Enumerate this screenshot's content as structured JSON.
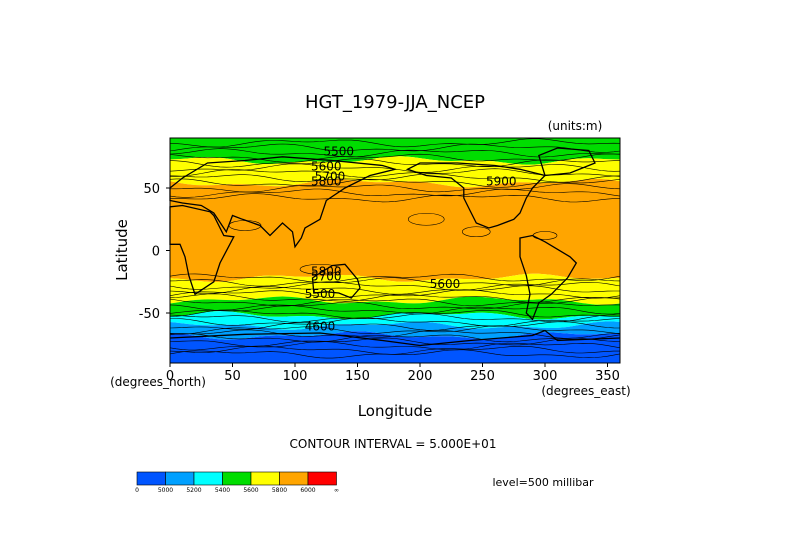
{
  "chart_data": {
    "type": "heatmap",
    "title": "HGT_1979-JJA_NCEP",
    "units_label": "(units:m)",
    "xlabel": "Longitude",
    "ylabel": "Latitude",
    "x_units_label": "(degrees_east)",
    "y_units_label": "(degrees_north)",
    "xlim": [
      0,
      360
    ],
    "ylim": [
      -90,
      90
    ],
    "x_ticks": [
      0,
      50,
      100,
      150,
      200,
      250,
      300,
      350
    ],
    "y_ticks": [
      50,
      0,
      -50
    ],
    "contour_interval_text": "CONTOUR INTERVAL = 5.000E+01",
    "level_text": "level=500 millibar",
    "contour_labels": [
      "5500",
      "5600",
      "5700",
      "5800",
      "5900",
      "5800",
      "5700",
      "5600",
      "5500",
      "4600"
    ],
    "legend": {
      "tick_labels": [
        "0",
        "5000",
        "5200",
        "5400",
        "5600",
        "5800",
        "6000",
        "∞"
      ],
      "colors": [
        "#0055ff",
        "#00a0ff",
        "#00ffff",
        "#00dd00",
        "#ffff00",
        "#ffa500",
        "#ff0000"
      ]
    },
    "bands": [
      {
        "lat_from": 90,
        "lat_to": 72,
        "value": "5400-5600",
        "color": "#00dd00"
      },
      {
        "lat_from": 72,
        "lat_to": 54,
        "value": "5600-5800",
        "color": "#ffff00"
      },
      {
        "lat_from": 54,
        "lat_to": -22,
        "value": "5800-6000",
        "color": "#ffa500"
      },
      {
        "lat_from": -22,
        "lat_to": -40,
        "value": "5600-5800",
        "color": "#ffff00"
      },
      {
        "lat_from": -40,
        "lat_to": -52,
        "value": "5400-5600",
        "color": "#00dd00"
      },
      {
        "lat_from": -52,
        "lat_to": -60,
        "value": "5200-5400",
        "color": "#00ffff"
      },
      {
        "lat_from": -60,
        "lat_to": -68,
        "value": "5000-5200",
        "color": "#00a0ff"
      },
      {
        "lat_from": -68,
        "lat_to": -90,
        "value": "0-5000",
        "color": "#0055ff"
      }
    ]
  }
}
